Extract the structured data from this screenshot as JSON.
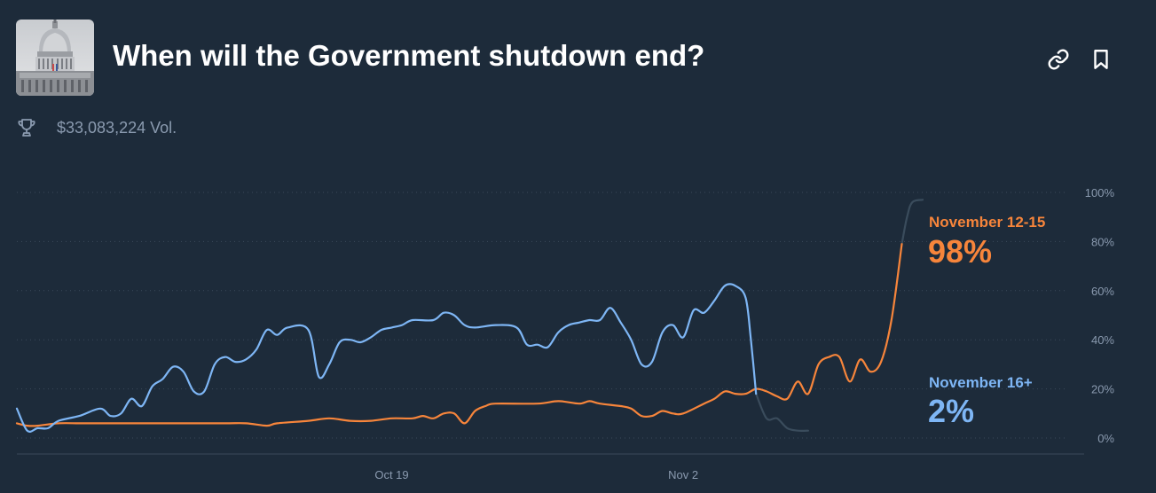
{
  "header": {
    "title": "When will the Government shutdown end?",
    "volume": "$33,083,224 Vol.",
    "thumbnail_icon": "capitol-building-icon",
    "actions": [
      {
        "name": "link-button",
        "icon": "link-icon"
      },
      {
        "name": "bookmark-button",
        "icon": "bookmark-icon"
      }
    ]
  },
  "colors": {
    "background": "#1d2b3a",
    "series_orange": "#f7853b",
    "series_blue": "#7eb6f5",
    "hidden_series": "#3a4c5c",
    "grid": "#3b4a5a",
    "tick_text": "#8a9aaf"
  },
  "chart_data": {
    "type": "line",
    "xlim": [
      "2025-10-01",
      "2025-11-13"
    ],
    "x_ticks": [
      "Oct 19",
      "Nov 2"
    ],
    "y_ticks": [
      "0%",
      "20%",
      "40%",
      "60%",
      "80%",
      "100%"
    ],
    "ylim": [
      0,
      100
    ],
    "grid": "horizontal-dotted",
    "legend": "right-end-labels",
    "series": [
      {
        "name": "November 12-15",
        "current_label": "98%",
        "color": "#f7853b",
        "points": [
          [
            "2025-10-01T00:00",
            6
          ],
          [
            "2025-10-01T12:00",
            5
          ],
          [
            "2025-10-02T00:00",
            5
          ],
          [
            "2025-10-03T00:00",
            6
          ],
          [
            "2025-10-04T00:00",
            6
          ],
          [
            "2025-10-05T00:00",
            6
          ],
          [
            "2025-10-07T00:00",
            6
          ],
          [
            "2025-10-09T00:00",
            6
          ],
          [
            "2025-10-11T00:00",
            6
          ],
          [
            "2025-10-12T00:00",
            6
          ],
          [
            "2025-10-13T00:00",
            5
          ],
          [
            "2025-10-13T12:00",
            6
          ],
          [
            "2025-10-15T00:00",
            7
          ],
          [
            "2025-10-16T00:00",
            8
          ],
          [
            "2025-10-17T00:00",
            7
          ],
          [
            "2025-10-18T00:00",
            7
          ],
          [
            "2025-10-19T00:00",
            8
          ],
          [
            "2025-10-20T00:00",
            8
          ],
          [
            "2025-10-20T12:00",
            9
          ],
          [
            "2025-10-21T00:00",
            8
          ],
          [
            "2025-10-21T12:00",
            10
          ],
          [
            "2025-10-22T00:00",
            10
          ],
          [
            "2025-10-22T12:00",
            6
          ],
          [
            "2025-10-23T00:00",
            11
          ],
          [
            "2025-10-23T12:00",
            13
          ],
          [
            "2025-10-24T00:00",
            14
          ],
          [
            "2025-10-26T00:00",
            14
          ],
          [
            "2025-10-27T00:00",
            15
          ],
          [
            "2025-10-28T00:00",
            14
          ],
          [
            "2025-10-28T12:00",
            15
          ],
          [
            "2025-10-29T00:00",
            14
          ],
          [
            "2025-10-30T00:00",
            13
          ],
          [
            "2025-10-30T12:00",
            12
          ],
          [
            "2025-10-31T00:00",
            9
          ],
          [
            "2025-10-31T12:00",
            9
          ],
          [
            "2025-11-01T00:00",
            11
          ],
          [
            "2025-11-01T12:00",
            10
          ],
          [
            "2025-11-02T00:00",
            10
          ],
          [
            "2025-11-03T00:00",
            14
          ],
          [
            "2025-11-03T12:00",
            16
          ],
          [
            "2025-11-04T00:00",
            19
          ],
          [
            "2025-11-04T12:00",
            18
          ],
          [
            "2025-11-05T00:00",
            18
          ],
          [
            "2025-11-05T12:00",
            20
          ],
          [
            "2025-11-06T00:00",
            19
          ],
          [
            "2025-11-06T12:00",
            17
          ],
          [
            "2025-11-07T00:00",
            16
          ],
          [
            "2025-11-07T12:00",
            23
          ],
          [
            "2025-11-08T00:00",
            18
          ],
          [
            "2025-11-08T12:00",
            30
          ],
          [
            "2025-11-09T00:00",
            33
          ],
          [
            "2025-11-09T12:00",
            33
          ],
          [
            "2025-11-10T00:00",
            23
          ],
          [
            "2025-11-10T12:00",
            32
          ],
          [
            "2025-11-11T00:00",
            27
          ],
          [
            "2025-11-11T12:00",
            31
          ],
          [
            "2025-11-12T00:00",
            48
          ],
          [
            "2025-11-12T12:00",
            79
          ],
          [
            "2025-11-12T18:00",
            90
          ],
          [
            "2025-11-13T00:00",
            96
          ],
          [
            "2025-11-13T12:00",
            97
          ]
        ]
      },
      {
        "name": "November 16+",
        "current_label": "2%",
        "color": "#7eb6f5",
        "points": [
          [
            "2025-10-01T00:00",
            12
          ],
          [
            "2025-10-01T12:00",
            3
          ],
          [
            "2025-10-02T00:00",
            4
          ],
          [
            "2025-10-02T12:00",
            4
          ],
          [
            "2025-10-03T00:00",
            7
          ],
          [
            "2025-10-04T00:00",
            9
          ],
          [
            "2025-10-05T00:00",
            12
          ],
          [
            "2025-10-05T12:00",
            9
          ],
          [
            "2025-10-06T00:00",
            10
          ],
          [
            "2025-10-06T12:00",
            16
          ],
          [
            "2025-10-07T00:00",
            13
          ],
          [
            "2025-10-07T12:00",
            21
          ],
          [
            "2025-10-08T00:00",
            24
          ],
          [
            "2025-10-08T12:00",
            29
          ],
          [
            "2025-10-09T00:00",
            27
          ],
          [
            "2025-10-09T12:00",
            19
          ],
          [
            "2025-10-10T00:00",
            19
          ],
          [
            "2025-10-10T12:00",
            30
          ],
          [
            "2025-10-11T00:00",
            33
          ],
          [
            "2025-10-11T12:00",
            31
          ],
          [
            "2025-10-12T00:00",
            32
          ],
          [
            "2025-10-12T12:00",
            36
          ],
          [
            "2025-10-13T00:00",
            44
          ],
          [
            "2025-10-13T12:00",
            42
          ],
          [
            "2025-10-14T00:00",
            45
          ],
          [
            "2025-10-15T00:00",
            44
          ],
          [
            "2025-10-15T12:00",
            25
          ],
          [
            "2025-10-16T00:00",
            30
          ],
          [
            "2025-10-16T12:00",
            39
          ],
          [
            "2025-10-17T00:00",
            40
          ],
          [
            "2025-10-17T12:00",
            39
          ],
          [
            "2025-10-18T00:00",
            41
          ],
          [
            "2025-10-18T12:00",
            44
          ],
          [
            "2025-10-19T00:00",
            45
          ],
          [
            "2025-10-19T12:00",
            46
          ],
          [
            "2025-10-20T00:00",
            48
          ],
          [
            "2025-10-21T00:00",
            48
          ],
          [
            "2025-10-21T12:00",
            51
          ],
          [
            "2025-10-22T00:00",
            50
          ],
          [
            "2025-10-22T12:00",
            46
          ],
          [
            "2025-10-23T00:00",
            45
          ],
          [
            "2025-10-24T00:00",
            46
          ],
          [
            "2025-10-25T00:00",
            45
          ],
          [
            "2025-10-25T12:00",
            38
          ],
          [
            "2025-10-26T00:00",
            38
          ],
          [
            "2025-10-26T12:00",
            37
          ],
          [
            "2025-10-27T00:00",
            43
          ],
          [
            "2025-10-27T12:00",
            46
          ],
          [
            "2025-10-28T00:00",
            47
          ],
          [
            "2025-10-28T12:00",
            48
          ],
          [
            "2025-10-29T00:00",
            48
          ],
          [
            "2025-10-29T12:00",
            53
          ],
          [
            "2025-10-30T00:00",
            47
          ],
          [
            "2025-10-30T12:00",
            40
          ],
          [
            "2025-10-31T00:00",
            30
          ],
          [
            "2025-10-31T12:00",
            31
          ],
          [
            "2025-11-01T00:00",
            43
          ],
          [
            "2025-11-01T12:00",
            46
          ],
          [
            "2025-11-02T00:00",
            41
          ],
          [
            "2025-11-02T12:00",
            52
          ],
          [
            "2025-11-03T00:00",
            51
          ],
          [
            "2025-11-03T12:00",
            56
          ],
          [
            "2025-11-04T00:00",
            62
          ],
          [
            "2025-11-04T12:00",
            62
          ],
          [
            "2025-11-05T00:00",
            57
          ],
          [
            "2025-11-05T06:00",
            40
          ],
          [
            "2025-11-05T12:00",
            18
          ],
          [
            "2025-11-06T00:00",
            8
          ],
          [
            "2025-11-06T12:00",
            8
          ],
          [
            "2025-11-07T00:00",
            4
          ],
          [
            "2025-11-07T12:00",
            3
          ],
          [
            "2025-11-08T00:00",
            3
          ]
        ]
      }
    ]
  }
}
